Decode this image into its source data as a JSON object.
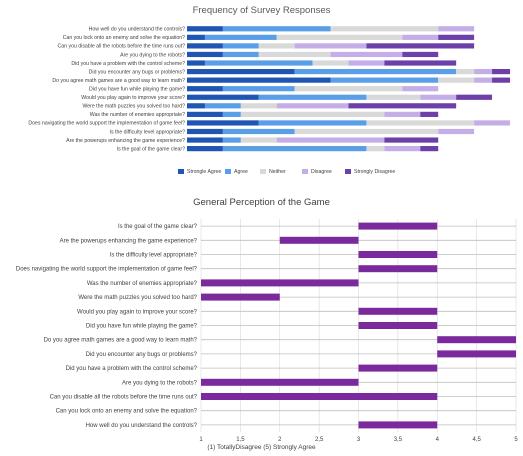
{
  "chart_data": [
    {
      "type": "bar",
      "stacked": true,
      "orientation": "horizontal",
      "title": "Frequency of Survey Responses",
      "categories": [
        "How well do you understand the controls?",
        "Can you lock onto an enemy and solve the equation?",
        "Can you disable all the robots before the time runs out?",
        "Are you dying to the robots?",
        "Did you have a problem with the control scheme?",
        "Did you encounter any bugs or problems?",
        "Do you agree math games are a good way to learn math?",
        "Did you have fun while playing the game?",
        "Would you play again to improve your score?",
        "Were the math puzzles you solved too hard?",
        "Was the number of enemies appropriate?",
        "Does navigating the world support the implementation of game feel?",
        "Is the difficulty level appropriate?",
        "Are the powerups enhancing the game experience?",
        "Is the goal of the game clear?"
      ],
      "series": [
        {
          "name": "Strongle Agree",
          "color": "#1f56b4",
          "values": [
            1,
            0.5,
            1,
            1,
            0.5,
            3,
            4,
            1,
            2,
            0.5,
            1,
            2,
            1,
            1,
            1
          ]
        },
        {
          "name": "Agree",
          "color": "#5b9ee8",
          "values": [
            3,
            2,
            1,
            1,
            3,
            4.5,
            3,
            2,
            3,
            1,
            0.5,
            3,
            2,
            0.5,
            4
          ]
        },
        {
          "name": "Neither",
          "color": "#d9d9d9",
          "values": [
            3,
            3.5,
            1,
            2,
            1,
            0.5,
            1,
            3,
            1.5,
            1,
            4,
            3,
            4,
            1,
            0.5
          ]
        },
        {
          "name": "Disagree",
          "color": "#c5aee8",
          "values": [
            1,
            1,
            2,
            2,
            1,
            0.5,
            0.5,
            1,
            1,
            2,
            1,
            1,
            1,
            3,
            1
          ]
        },
        {
          "name": "Strongly Disagree",
          "color": "#6d3fa8",
          "values": [
            0,
            1,
            3,
            1,
            2,
            0.5,
            0.5,
            0,
            1,
            3,
            0.5,
            0,
            0,
            1.5,
            0.5
          ]
        }
      ],
      "legend_position": "bottom",
      "grid": false
    },
    {
      "type": "bar",
      "orientation": "horizontal",
      "floating": true,
      "title": "General Perception of the Game",
      "xlabel": "(1) TotallyDisagree    (5) Strongly Agree",
      "xlim": [
        1,
        5
      ],
      "xticks": [
        "1",
        "1,5",
        "2",
        "2,5",
        "3",
        "3,5",
        "4",
        "4,5",
        "5"
      ],
      "color": "#7b2a9e",
      "grid": true,
      "items": [
        {
          "label": "Is the goal of the game clear?",
          "range": [
            3,
            4
          ]
        },
        {
          "label": "Are the powerups enhancing the game experience?",
          "range": [
            2,
            3
          ]
        },
        {
          "label": "Is the difficulty level appropriate?",
          "range": [
            3,
            4
          ]
        },
        {
          "label": "Does navigating the world support the implementation of game feel?",
          "range": [
            3,
            4
          ]
        },
        {
          "label": "Was the number of enemies appropriate?",
          "range": [
            1,
            3
          ]
        },
        {
          "label": "Were the math puzzles you solved too hard?",
          "range": [
            1,
            2
          ]
        },
        {
          "label": "Would you play again to improve your score?",
          "range": [
            3,
            4
          ]
        },
        {
          "label": "Did you have fun while playing the game?",
          "range": [
            3,
            4
          ]
        },
        {
          "label": "Do you agree math games are a good way to learn math?",
          "range": [
            4,
            5
          ]
        },
        {
          "label": "Did you encounter any bugs or problems?",
          "range": [
            4,
            5
          ]
        },
        {
          "label": "Did you have a problem with the control scheme?",
          "range": [
            3,
            4
          ]
        },
        {
          "label": "Are you dying to the robots?",
          "range": [
            1,
            3
          ]
        },
        {
          "label": "Can you disable all the robots before the time runs out?",
          "range": [
            1,
            4
          ]
        },
        {
          "label": "Can you lock onto an enemy and solve the equation?",
          "range": [
            4,
            4
          ]
        },
        {
          "label": "How well do you understand the controls?",
          "range": [
            3,
            4
          ]
        }
      ]
    }
  ]
}
